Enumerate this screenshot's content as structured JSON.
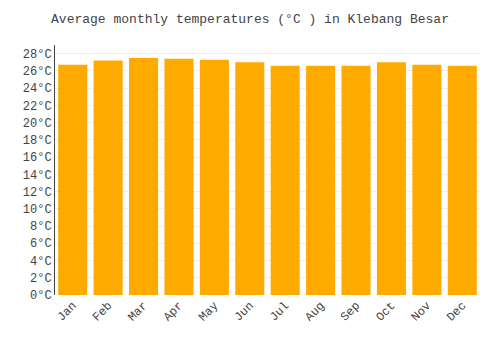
{
  "chart_data": {
    "type": "bar",
    "title": "Average monthly temperatures (°C ) in Klebang Besar",
    "categories": [
      "Jan",
      "Feb",
      "Mar",
      "Apr",
      "May",
      "Jun",
      "Jul",
      "Aug",
      "Sep",
      "Oct",
      "Nov",
      "Dec"
    ],
    "values": [
      26.7,
      27.2,
      27.5,
      27.4,
      27.3,
      27.0,
      26.6,
      26.6,
      26.6,
      27.0,
      26.7,
      26.6
    ],
    "color": "#FFAA00",
    "ylim": [
      0,
      29
    ],
    "yticks": [
      {
        "value": 0,
        "label": "0°C"
      },
      {
        "value": 2,
        "label": "2°C"
      },
      {
        "value": 4,
        "label": "4°C"
      },
      {
        "value": 6,
        "label": "6°C"
      },
      {
        "value": 8,
        "label": "8°C"
      },
      {
        "value": 10,
        "label": "10°C"
      },
      {
        "value": 12,
        "label": "12°C"
      },
      {
        "value": 14,
        "label": "14°C"
      },
      {
        "value": 16,
        "label": "16°C"
      },
      {
        "value": 18,
        "label": "18°C"
      },
      {
        "value": 20,
        "label": "20°C"
      },
      {
        "value": 22,
        "label": "22°C"
      },
      {
        "value": 24,
        "label": "24°C"
      },
      {
        "value": 26,
        "label": "26°C"
      },
      {
        "value": 28,
        "label": "28°C"
      }
    ],
    "grid": true
  }
}
